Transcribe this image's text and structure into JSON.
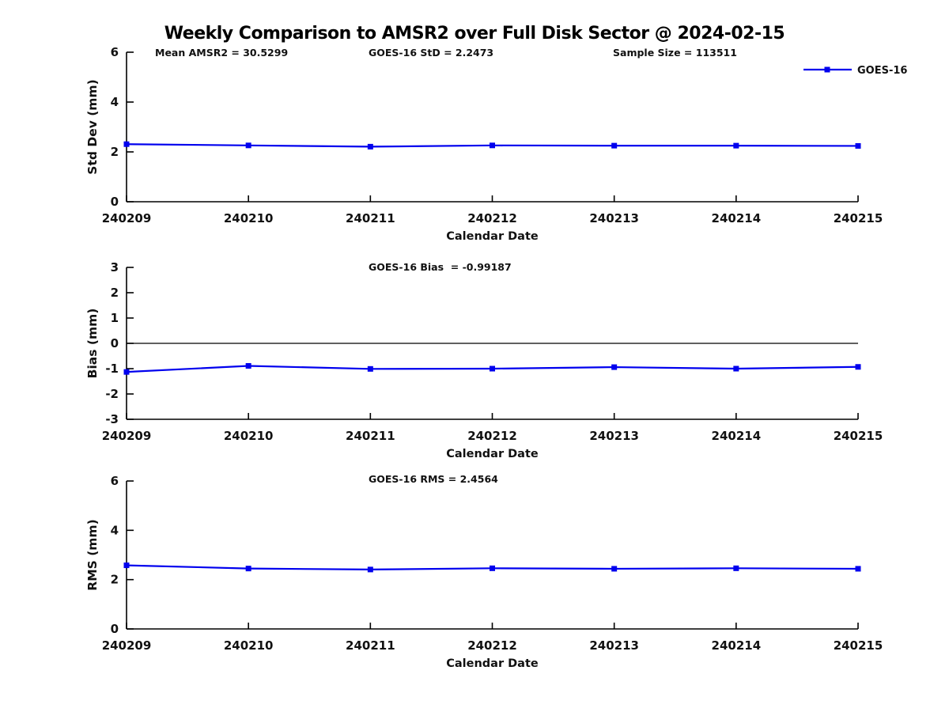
{
  "figure": {
    "title": "Weekly Comparison to AMSR2 over Full Disk Sector @ 2024-02-15",
    "legend": {
      "label": "GOES-16",
      "marker": "square-icon"
    },
    "colors": {
      "line": "#0000EE",
      "marker": "#0000EE",
      "axis": "#000000",
      "text": "#111111",
      "zero_line": "#000000",
      "background": "#ffffff"
    }
  },
  "chart_data": [
    {
      "type": "line",
      "annotations": [
        "Mean AMSR2 = 30.5299",
        "GOES-16 StD = 2.2473",
        "Sample Size = 113511"
      ],
      "categories": [
        "240209",
        "240210",
        "240211",
        "240212",
        "240213",
        "240214",
        "240215"
      ],
      "series": [
        {
          "name": "GOES-16",
          "values": [
            2.31,
            2.26,
            2.21,
            2.26,
            2.25,
            2.25,
            2.24
          ]
        }
      ],
      "xlabel": "Calendar Date",
      "ylabel": "Std Dev (mm)",
      "ylim": [
        0,
        6
      ],
      "yticks": [
        0,
        2,
        4,
        6
      ],
      "zero_line": false,
      "grid": false,
      "legend_position": "top-right-outside"
    },
    {
      "type": "line",
      "annotations": [
        "GOES-16 Bias  = -0.99187"
      ],
      "categories": [
        "240209",
        "240210",
        "240211",
        "240212",
        "240213",
        "240214",
        "240215"
      ],
      "series": [
        {
          "name": "GOES-16",
          "values": [
            -1.13,
            -0.89,
            -1.01,
            -1.0,
            -0.94,
            -1.0,
            -0.93
          ]
        }
      ],
      "xlabel": "Calendar Date",
      "ylabel": "Bias (mm)",
      "ylim": [
        -3,
        3
      ],
      "yticks": [
        -3,
        -2,
        -1,
        0,
        1,
        2,
        3
      ],
      "zero_line": true,
      "grid": false,
      "legend_position": "none"
    },
    {
      "type": "line",
      "annotations": [
        "GOES-16 RMS = 2.4564"
      ],
      "categories": [
        "240209",
        "240210",
        "240211",
        "240212",
        "240213",
        "240214",
        "240215"
      ],
      "series": [
        {
          "name": "GOES-16",
          "values": [
            2.58,
            2.45,
            2.41,
            2.46,
            2.44,
            2.46,
            2.44
          ]
        }
      ],
      "xlabel": "Calendar Date",
      "ylabel": "RMS (mm)",
      "ylim": [
        0,
        6
      ],
      "yticks": [
        0,
        2,
        4,
        6
      ],
      "zero_line": false,
      "grid": false,
      "legend_position": "none"
    }
  ]
}
